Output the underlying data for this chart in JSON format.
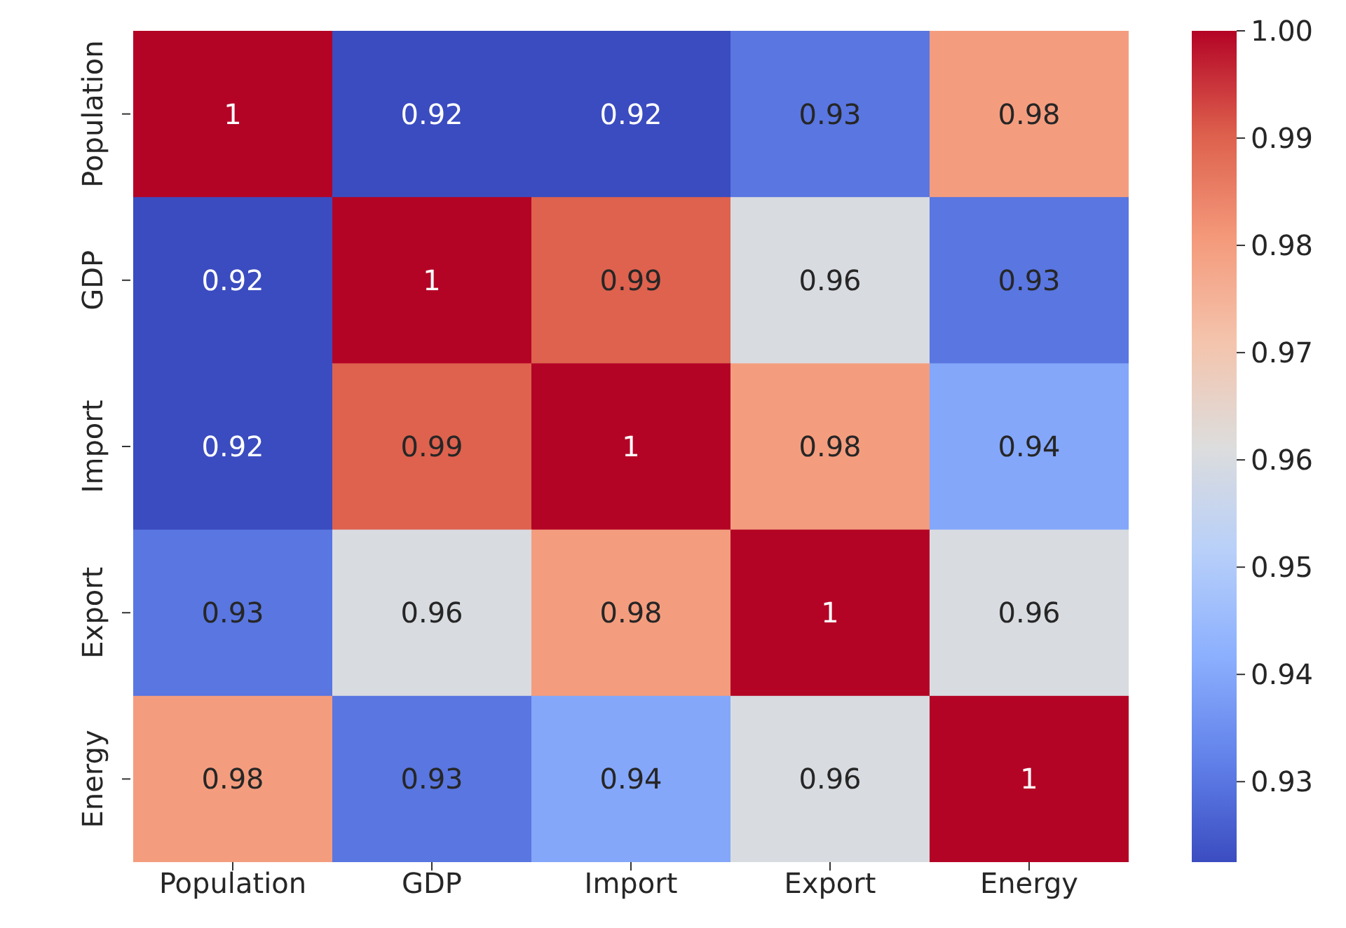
{
  "chart_data": {
    "type": "heatmap",
    "categories": [
      "Population",
      "GDP",
      "Import",
      "Export",
      "Energy"
    ],
    "y_categories": [
      "Population",
      "GDP",
      "Import",
      "Export",
      "Energy"
    ],
    "cells": [
      [
        1,
        0.92,
        0.92,
        0.93,
        0.98
      ],
      [
        0.92,
        1,
        0.99,
        0.96,
        0.93
      ],
      [
        0.92,
        0.99,
        1,
        0.98,
        0.94
      ],
      [
        0.93,
        0.96,
        0.98,
        1,
        0.96
      ],
      [
        0.98,
        0.93,
        0.94,
        0.96,
        1
      ]
    ],
    "data_labels": true,
    "clim": [
      0.9225,
      1.0
    ],
    "cticks": [
      0.93,
      0.94,
      0.95,
      0.96,
      0.97,
      0.98,
      0.99,
      {
        "value": 1.0,
        "label": "1.00"
      }
    ]
  }
}
